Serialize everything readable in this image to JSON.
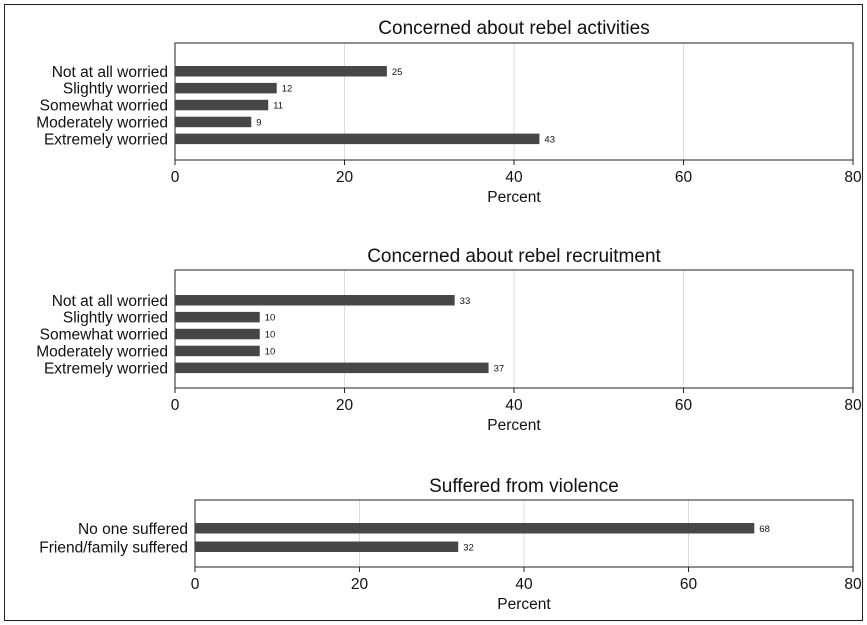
{
  "chart_data": [
    {
      "type": "bar",
      "orientation": "horizontal",
      "title": "Concerned about rebel activities",
      "xlabel": "Percent",
      "xlim": [
        0,
        80
      ],
      "xticks": [
        "0",
        "20",
        "40",
        "60",
        "80"
      ],
      "grid": true,
      "categories": [
        "Not at all worried",
        "Slightly worried",
        "Somewhat worried",
        "Moderately worried",
        "Extremely worried"
      ],
      "values": [
        25,
        12,
        11,
        9,
        43
      ],
      "value_labels": [
        "25",
        "12",
        "11",
        "9",
        "43"
      ],
      "colors": {
        "bar": "#474747",
        "grid": "#dcdcdc"
      }
    },
    {
      "type": "bar",
      "orientation": "horizontal",
      "title": "Concerned about rebel recruitment",
      "xlabel": "Percent",
      "xlim": [
        0,
        80
      ],
      "xticks": [
        "0",
        "20",
        "40",
        "60",
        "80"
      ],
      "grid": true,
      "categories": [
        "Not at all worried",
        "Slightly worried",
        "Somewhat worried",
        "Moderately worried",
        "Extremely worried"
      ],
      "values": [
        33,
        10,
        10,
        10,
        37
      ],
      "value_labels": [
        "33",
        "10",
        "10",
        "10",
        "37"
      ],
      "colors": {
        "bar": "#474747",
        "grid": "#dcdcdc"
      }
    },
    {
      "type": "bar",
      "orientation": "horizontal",
      "title": "Suffered from violence",
      "xlabel": "Percent",
      "xlim": [
        0,
        80
      ],
      "xticks": [
        "0",
        "20",
        "40",
        "60",
        "80"
      ],
      "grid": true,
      "categories": [
        "No one suffered",
        "Friend/family suffered"
      ],
      "values": [
        68,
        32
      ],
      "value_labels": [
        "68",
        "32"
      ],
      "colors": {
        "bar": "#474747",
        "grid": "#dcdcdc"
      }
    }
  ]
}
